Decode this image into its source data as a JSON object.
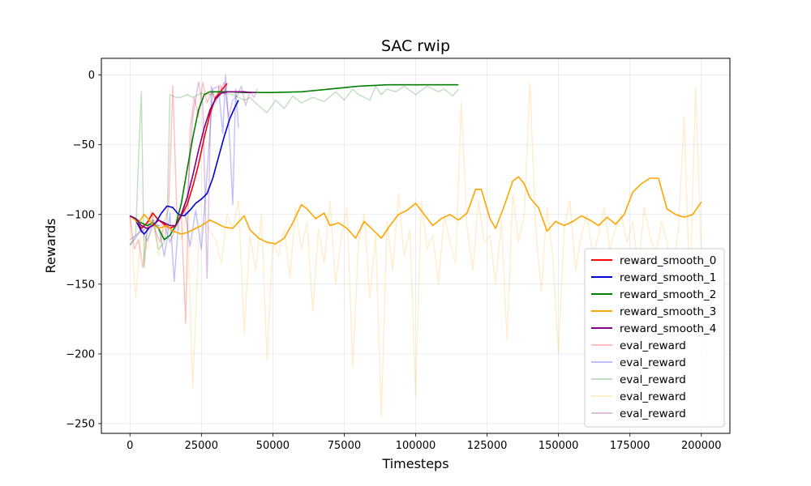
{
  "chart_data": {
    "type": "line",
    "title": "SAC rwip",
    "xlabel": "Timesteps",
    "ylabel": "Rewards",
    "xlim": [
      -10000,
      210000
    ],
    "ylim": [
      -257,
      12
    ],
    "xticks": [
      0,
      25000,
      50000,
      75000,
      100000,
      125000,
      150000,
      175000,
      200000
    ],
    "yticks": [
      0,
      -50,
      -100,
      -150,
      -200,
      -250
    ],
    "grid": true,
    "legend_position": "lower right",
    "series": [
      {
        "name": "reward_smooth_0",
        "color": "#ff0000",
        "alpha": 1,
        "width": 1.6,
        "x": [
          0,
          2000,
          4000,
          6000,
          8000,
          10000,
          12000,
          14000,
          16000,
          18000,
          20000,
          22000,
          24000,
          26000,
          28000,
          30000,
          32000,
          34000
        ],
        "y": [
          -101,
          -104,
          -110,
          -106,
          -99,
          -104,
          -107,
          -110,
          -108,
          -101,
          -93,
          -80,
          -64,
          -45,
          -28,
          -16,
          -11,
          -6
        ]
      },
      {
        "name": "reward_smooth_1",
        "color": "#0000dd",
        "alpha": 1,
        "width": 1.6,
        "x": [
          0,
          2000,
          4000,
          5000,
          7000,
          9000,
          11000,
          13000,
          15000,
          17000,
          19000,
          21000,
          23000,
          25000,
          27000,
          29000,
          31000,
          33000,
          35000,
          37000,
          38000
        ],
        "y": [
          -101,
          -104,
          -112,
          -114,
          -109,
          -106,
          -99,
          -94,
          -95,
          -100,
          -101,
          -97,
          -92,
          -89,
          -85,
          -74,
          -59,
          -44,
          -31,
          -22,
          -18
        ]
      },
      {
        "name": "reward_smooth_2",
        "color": "#008000",
        "alpha": 1,
        "width": 1.6,
        "x": [
          0,
          2000,
          4000,
          6000,
          8000,
          10000,
          12000,
          14000,
          16000,
          18000,
          20000,
          22000,
          24000,
          26000,
          28000,
          30000,
          35000,
          40000,
          50000,
          60000,
          70000,
          80000,
          90000,
          100000,
          110000,
          115000
        ],
        "y": [
          -101,
          -103,
          -106,
          -108,
          -106,
          -110,
          -118,
          -115,
          -108,
          -92,
          -68,
          -45,
          -25,
          -14,
          -12,
          -12,
          -12,
          -12.5,
          -12.5,
          -12,
          -10,
          -8,
          -7,
          -7,
          -7,
          -7
        ]
      },
      {
        "name": "reward_smooth_3",
        "color": "#ffa500",
        "alpha": 1,
        "width": 1.6,
        "x": [
          0,
          3000,
          5000,
          8000,
          10000,
          13000,
          15000,
          18000,
          20000,
          23000,
          25000,
          28000,
          30000,
          33000,
          36000,
          40000,
          42000,
          45000,
          48000,
          51000,
          54000,
          57000,
          60000,
          62000,
          65000,
          68000,
          70000,
          73000,
          76000,
          79000,
          82000,
          85000,
          88000,
          91000,
          94000,
          97000,
          100000,
          103000,
          106000,
          109000,
          112000,
          115000,
          118000,
          121000,
          123000,
          126000,
          128000,
          131000,
          134000,
          136000,
          138000,
          140000,
          143000,
          146000,
          149000,
          152000,
          155000,
          158000,
          161000,
          164000,
          167000,
          170000,
          173000,
          176000,
          179000,
          182000,
          185000,
          188000,
          191000,
          194000,
          197000,
          200000
        ],
        "y": [
          -101,
          -106,
          -100,
          -107,
          -110,
          -108,
          -112,
          -114,
          -113,
          -110,
          -108,
          -104,
          -106,
          -109,
          -110,
          -101,
          -111,
          -117,
          -120,
          -121,
          -117,
          -106,
          -93,
          -96,
          -103,
          -99,
          -108,
          -106,
          -110,
          -117,
          -105,
          -111,
          -117,
          -108,
          -100,
          -97,
          -92,
          -100,
          -108,
          -103,
          -100,
          -104,
          -99,
          -82,
          -82,
          -103,
          -110,
          -94,
          -76,
          -73,
          -78,
          -88,
          -95,
          -112,
          -105,
          -108,
          -105,
          -101,
          -104,
          -108,
          -102,
          -107,
          -100,
          -84,
          -78,
          -74,
          -74,
          -96,
          -100,
          -102,
          -100,
          -91
        ]
      },
      {
        "name": "reward_smooth_4",
        "color": "#800080",
        "alpha": 1,
        "width": 1.6,
        "x": [
          0,
          2000,
          4000,
          6000,
          8000,
          10000,
          12000,
          14000,
          16000,
          18000,
          20000,
          22000,
          24000,
          26000,
          28000,
          30000,
          32000,
          34000,
          36000,
          38000,
          40000,
          42000,
          44000
        ],
        "y": [
          -101,
          -103,
          -108,
          -110,
          -108,
          -104,
          -106,
          -108,
          -108,
          -100,
          -88,
          -72,
          -54,
          -38,
          -25,
          -17,
          -13,
          -12,
          -12,
          -12,
          -12,
          -12.5,
          -12.5
        ]
      },
      {
        "name": "eval_reward",
        "color": "#ff0000",
        "alpha": 0.25,
        "width": 1.4,
        "x": [
          0,
          1500,
          3000,
          4500,
          6000,
          7500,
          9000,
          10500,
          12000,
          13500,
          15000,
          16500,
          18000,
          19500,
          21000,
          22500,
          24000,
          25500,
          27000,
          28500,
          30000,
          31500,
          33000,
          34000
        ],
        "y": [
          -101,
          -125,
          -118,
          -138,
          -110,
          -98,
          -112,
          -120,
          -106,
          -96,
          -8,
          -105,
          -100,
          -178,
          -40,
          -16,
          -30,
          -5,
          -20,
          -12,
          -18,
          -7,
          -14,
          -6
        ]
      },
      {
        "name": "eval_reward",
        "color": "#0000ff",
        "alpha": 0.25,
        "width": 1.4,
        "x": [
          0,
          2000,
          4000,
          6000,
          8000,
          10000,
          12000,
          13000,
          14000,
          15500,
          17000,
          19000,
          21000,
          23000,
          25000,
          27000,
          29000,
          31000,
          32500,
          33500,
          35000,
          36000,
          37000,
          38000
        ],
        "y": [
          -122,
          -117,
          -110,
          -119,
          -108,
          -108,
          -130,
          -118,
          -99,
          -148,
          -106,
          -93,
          -123,
          -97,
          -125,
          -71,
          -10,
          -8,
          -42,
          0,
          -50,
          -93,
          -10,
          -38
        ]
      },
      {
        "name": "eval_reward",
        "color": "#008000",
        "alpha": 0.25,
        "width": 1.4,
        "x": [
          0,
          2000,
          3000,
          4000,
          5000,
          6000,
          8000,
          10000,
          12000,
          13000,
          14000,
          16000,
          18000,
          20000,
          22000,
          25000,
          28000,
          30000,
          33000,
          36000,
          40000,
          42000,
          45000,
          48000,
          51000,
          54000,
          57000,
          60000,
          64000,
          68000,
          72000,
          75000,
          78000,
          80000,
          84000,
          86000,
          88000,
          90000,
          93000,
          96000,
          100000,
          104000,
          108000,
          110000,
          113000,
          115000
        ],
        "y": [
          -122,
          -115,
          -60,
          -12,
          -138,
          -112,
          -104,
          -125,
          -120,
          -106,
          -14,
          -16,
          -16,
          -14,
          -16,
          -13,
          -14,
          -12,
          -13,
          -14,
          -18,
          -16,
          -22,
          -27,
          -18,
          -24,
          -15,
          -20,
          -16,
          -19,
          -12,
          -18,
          -10,
          -14,
          -18,
          -8,
          -14,
          -10,
          -12,
          -8,
          -14,
          -8,
          -12,
          -10,
          -15,
          -10
        ]
      },
      {
        "name": "eval_reward",
        "color": "#ffa500",
        "alpha": 0.2,
        "width": 1.4,
        "x": [
          0,
          2000,
          4000,
          6000,
          8000,
          10000,
          12000,
          14000,
          16000,
          18000,
          20000,
          22000,
          24000,
          26000,
          28000,
          30000,
          32000,
          34000,
          36000,
          38000,
          40000,
          42000,
          44000,
          46000,
          48000,
          50000,
          52000,
          54000,
          56000,
          58000,
          60000,
          62000,
          64000,
          66000,
          68000,
          70000,
          72000,
          74000,
          76000,
          78000,
          80000,
          82000,
          84000,
          86000,
          88000,
          90000,
          92000,
          94000,
          96000,
          98000,
          100000,
          102000,
          104000,
          106000,
          108000,
          110000,
          112000,
          114000,
          116000,
          118000,
          120000,
          122000,
          124000,
          126000,
          128000,
          130000,
          132000,
          134000,
          136000,
          138000,
          140000,
          142000,
          144000,
          146000,
          148000,
          150000,
          152000,
          154000,
          156000,
          158000,
          160000,
          162000,
          164000,
          166000,
          168000,
          170000,
          172000,
          174000,
          176000,
          178000,
          180000,
          182000,
          184000,
          186000,
          188000,
          190000,
          192000,
          194000,
          196000,
          198000,
          200000
        ],
        "y": [
          -102,
          -160,
          -110,
          -125,
          -100,
          -130,
          -108,
          -112,
          -104,
          -118,
          -95,
          -225,
          -120,
          -105,
          -112,
          -118,
          -135,
          -100,
          -110,
          -90,
          -185,
          -115,
          -140,
          -100,
          -205,
          -120,
          -130,
          -110,
          -145,
          -95,
          -125,
          -105,
          -170,
          -110,
          -135,
          -90,
          -150,
          -115,
          -95,
          -210,
          -120,
          -100,
          -160,
          -115,
          -245,
          -105,
          -140,
          -85,
          -130,
          -110,
          -230,
          -90,
          -125,
          -115,
          -150,
          -100,
          -120,
          -135,
          -20,
          -110,
          -140,
          -90,
          -120,
          -115,
          -150,
          -105,
          -190,
          -85,
          -120,
          -100,
          -5,
          -110,
          -155,
          -95,
          -130,
          -200,
          -110,
          -90,
          -140,
          -115,
          -100,
          -130,
          -115,
          -95,
          -125,
          -110,
          -100,
          -120,
          -105,
          -140,
          -95,
          -115,
          -130,
          -105,
          -120,
          -145,
          -110,
          -30,
          -160,
          -8,
          -130
        ]
      },
      {
        "name": "eval_reward",
        "color": "#800080",
        "alpha": 0.25,
        "width": 1.4,
        "x": [
          0,
          2000,
          4000,
          6000,
          8000,
          10000,
          12000,
          14000,
          16000,
          18000,
          20000,
          22000,
          24000,
          25500,
          27000,
          28500,
          30000,
          31500,
          33000,
          34500,
          36000,
          37500,
          39000,
          40500,
          42000,
          43500,
          44500
        ],
        "y": [
          -118,
          -115,
          -112,
          -110,
          -104,
          -108,
          -107,
          -120,
          -110,
          -99,
          -90,
          -30,
          -5,
          -22,
          -146,
          -8,
          -20,
          -12,
          -5,
          -30,
          -18,
          -15,
          -8,
          -22,
          -12,
          -16,
          -10
        ]
      }
    ]
  }
}
